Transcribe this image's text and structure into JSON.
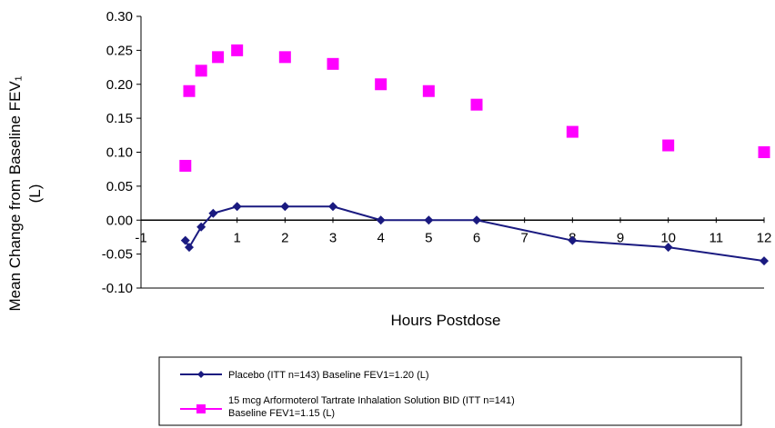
{
  "chart_data": {
    "type": "line",
    "xlabel": "Hours Postdose",
    "ylabel_line1": "Mean Change from Baseline FEV₁",
    "ylabel_line2": "(L)",
    "xlim": [
      -1,
      12
    ],
    "ylim": [
      -0.1,
      0.3
    ],
    "grid": false,
    "legend_position": "bottom",
    "xticks": [
      {
        "v": -1,
        "label": "-1"
      },
      {
        "v": 1,
        "label": "1"
      },
      {
        "v": 2,
        "label": "2"
      },
      {
        "v": 3,
        "label": "3"
      },
      {
        "v": 4,
        "label": "4"
      },
      {
        "v": 5,
        "label": "5"
      },
      {
        "v": 6,
        "label": "6"
      },
      {
        "v": 7,
        "label": "7"
      },
      {
        "v": 8,
        "label": "8"
      },
      {
        "v": 9,
        "label": "9"
      },
      {
        "v": 10,
        "label": "10"
      },
      {
        "v": 11,
        "label": "11"
      },
      {
        "v": 12,
        "label": "12"
      }
    ],
    "yticks": [
      {
        "v": 0.3,
        "label": "0.30"
      },
      {
        "v": 0.25,
        "label": "0.25"
      },
      {
        "v": 0.2,
        "label": "0.20"
      },
      {
        "v": 0.15,
        "label": "0.15"
      },
      {
        "v": 0.1,
        "label": "0.10"
      },
      {
        "v": 0.05,
        "label": "0.05"
      },
      {
        "v": 0.0,
        "label": "0.00"
      },
      {
        "v": -0.05,
        "label": "-0.05"
      },
      {
        "v": -0.1,
        "label": "-0.10"
      }
    ],
    "series": [
      {
        "name": "Placebo (ITT n=143) Baseline FEV1=1.20 (L)",
        "color": "#1a1a80",
        "marker": "diamond",
        "line": true,
        "x": [
          -0.08,
          0,
          0.25,
          0.5,
          1,
          2,
          3,
          4,
          5,
          6,
          8,
          10,
          12
        ],
        "y": [
          -0.03,
          -0.04,
          -0.01,
          0.01,
          0.02,
          0.02,
          0.02,
          0.0,
          0.0,
          0.0,
          -0.03,
          -0.04,
          -0.06
        ]
      },
      {
        "name_line1": "15 mcg Arformoterol Tartrate Inhalation Solution BID (ITT n=141)",
        "name_line2": "Baseline FEV1=1.15 (L)",
        "color": "#ff00ff",
        "marker": "square",
        "line": false,
        "x": [
          -0.08,
          0,
          0.25,
          0.6,
          1,
          2,
          3,
          4,
          5,
          6,
          8,
          10,
          12
        ],
        "y": [
          0.08,
          0.19,
          0.22,
          0.24,
          0.25,
          0.24,
          0.23,
          0.2,
          0.19,
          0.17,
          0.13,
          0.11,
          0.1
        ]
      }
    ]
  }
}
